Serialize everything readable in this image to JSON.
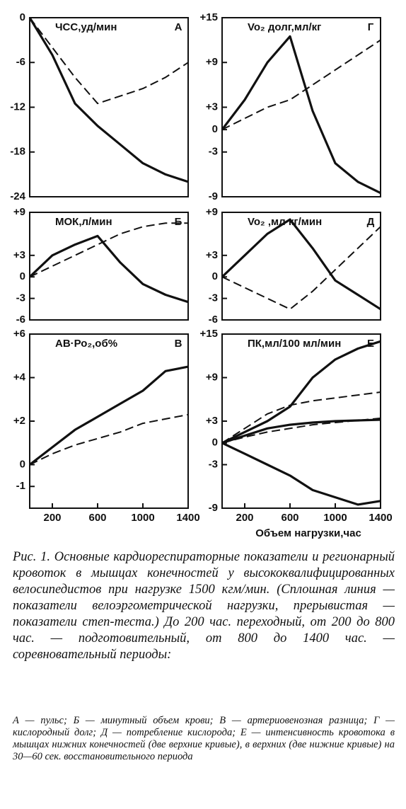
{
  "chart_data": [
    {
      "type": "line",
      "title": "ЧСС,уд/мин",
      "letter": "А",
      "x": [
        0,
        200,
        400,
        600,
        800,
        1000,
        1200,
        1400
      ],
      "series": [
        {
          "color": "#111",
          "dashed": false,
          "values": [
            0,
            -5,
            -11.5,
            -14.5,
            -17,
            -19.5,
            -21,
            -22
          ]
        },
        {
          "color": "#111",
          "dashed": true,
          "values": [
            0,
            -4,
            -8,
            -11.5,
            -10.5,
            -9.5,
            -8,
            -6
          ]
        }
      ],
      "xlim": [
        0,
        1400
      ],
      "ylim": [
        -24,
        0
      ],
      "yticks": [
        0,
        -6,
        -12,
        -18,
        -24
      ]
    },
    {
      "type": "line",
      "title": "Vo₂ долг,мл/кг",
      "letter": "Г",
      "x": [
        0,
        200,
        400,
        600,
        800,
        1000,
        1200,
        1400
      ],
      "series": [
        {
          "color": "#111",
          "dashed": false,
          "values": [
            0,
            4,
            9,
            12.5,
            2.5,
            -4.5,
            -7,
            -8.5
          ]
        },
        {
          "color": "#111",
          "dashed": true,
          "values": [
            0,
            1.5,
            3,
            4,
            6,
            8,
            10,
            12
          ]
        }
      ],
      "xlim": [
        0,
        1400
      ],
      "ylim": [
        -9,
        15
      ],
      "yticks": [
        {
          "value": 15,
          "label": "+15"
        },
        {
          "value": 9,
          "label": "+9"
        },
        {
          "value": 3,
          "label": "+3"
        },
        0,
        -3,
        -9
      ]
    },
    {
      "type": "line",
      "title": "МОК,л/мин",
      "letter": "Б",
      "x": [
        0,
        200,
        400,
        600,
        800,
        1000,
        1200,
        1400
      ],
      "series": [
        {
          "color": "#111",
          "dashed": false,
          "values": [
            0,
            3,
            4.5,
            5.7,
            2,
            -1,
            -2.5,
            -3.5
          ]
        },
        {
          "color": "#111",
          "dashed": true,
          "values": [
            0,
            1.5,
            3,
            4.5,
            6,
            7,
            7.5,
            7.5
          ]
        }
      ],
      "xlim": [
        0,
        1400
      ],
      "ylim": [
        -6,
        9
      ],
      "yticks": [
        {
          "value": 9,
          "label": "+9"
        },
        {
          "value": 3,
          "label": "+3"
        },
        0,
        -3,
        -6
      ]
    },
    {
      "type": "line",
      "title": "Vo₂ ,мл кг/мин",
      "letter": "Д",
      "x": [
        0,
        200,
        400,
        600,
        800,
        1000,
        1200,
        1400
      ],
      "series": [
        {
          "color": "#111",
          "dashed": false,
          "values": [
            0,
            3,
            6,
            8,
            4,
            -0.5,
            -2.5,
            -4.5
          ]
        },
        {
          "color": "#111",
          "dashed": true,
          "values": [
            0,
            -1.5,
            -3,
            -4.5,
            -2,
            1,
            4,
            7
          ]
        }
      ],
      "xlim": [
        0,
        1400
      ],
      "ylim": [
        -6,
        9
      ],
      "yticks": [
        {
          "value": 9,
          "label": "+9"
        },
        {
          "value": 3,
          "label": "+3"
        },
        0,
        -3,
        -6
      ]
    },
    {
      "type": "line",
      "title": "АВ·Ро₂,об%",
      "letter": "В",
      "x": [
        0,
        200,
        400,
        600,
        800,
        1000,
        1200,
        1400
      ],
      "series": [
        {
          "color": "#111",
          "dashed": false,
          "values": [
            0,
            0.8,
            1.6,
            2.2,
            2.8,
            3.4,
            4.3,
            4.5
          ]
        },
        {
          "color": "#111",
          "dashed": true,
          "values": [
            0,
            0.5,
            0.9,
            1.2,
            1.5,
            1.9,
            2.1,
            2.3
          ]
        }
      ],
      "xlim": [
        0,
        1400
      ],
      "ylim": [
        -2,
        6
      ],
      "yticks": [
        {
          "value": 6,
          "label": "+6"
        },
        {
          "value": 4,
          "label": "+4"
        },
        {
          "value": 2,
          "label": "+2"
        },
        0,
        -1
      ],
      "xticks": [
        200,
        600,
        1000,
        1400
      ]
    },
    {
      "type": "line",
      "title": "ПК,мл/100 мл/мин",
      "letter": "Е",
      "x": [
        0,
        200,
        400,
        600,
        800,
        1000,
        1200,
        1400
      ],
      "series": [
        {
          "color": "#111",
          "dashed": false,
          "values": [
            0,
            1.5,
            3,
            5,
            9,
            11.5,
            13,
            14
          ]
        },
        {
          "color": "#111",
          "dashed": true,
          "values": [
            0,
            2,
            4,
            5.2,
            5.8,
            6.2,
            6.6,
            7
          ]
        },
        {
          "color": "#111",
          "dashed": false,
          "values": [
            0,
            1,
            2,
            2.5,
            2.8,
            3,
            3.1,
            3.2
          ]
        },
        {
          "color": "#111",
          "dashed": true,
          "values": [
            0,
            0.8,
            1.5,
            2,
            2.5,
            2.8,
            3.1,
            3.4
          ]
        },
        {
          "color": "#111",
          "dashed": false,
          "values": [
            0,
            -1.5,
            -3,
            -4.5,
            -6.5,
            -7.5,
            -8.5,
            -8
          ]
        }
      ],
      "xlim": [
        0,
        1400
      ],
      "ylim": [
        -9,
        15
      ],
      "yticks": [
        {
          "value": 15,
          "label": "+15"
        },
        {
          "value": 9,
          "label": "+9"
        },
        {
          "value": 3,
          "label": "+3"
        },
        0,
        -3,
        -9
      ],
      "xticks": [
        200,
        600,
        1000,
        1400
      ],
      "xlabel": "Объем нагрузки,час"
    }
  ],
  "caption": "Рис. 1. Основные кардиореспираторные показатели и регионарный кровоток в мышцах конечностей у высококвалифицированных велосипедистов при нагрузке 1500 кгм/мин. (Сплошная линия — показатели велоэргометрической нагрузки, прерывистая — показатели степ-теста.) До 200 час. переходный, от 200 до 800 час. — подготовительный, от 800 до 1400 час. — соревновательный периоды:",
  "notes": "А — пульс; Б — минутный объем крови; В — артериовенозная разница; Г — кислородный долг; Д — потребление кислорода; Е — интенсивность кровотока в мышцах нижних конечностей (две верхние кривые), в верхних (две нижние кривые) на 30—60 сек. восстановительного периода"
}
